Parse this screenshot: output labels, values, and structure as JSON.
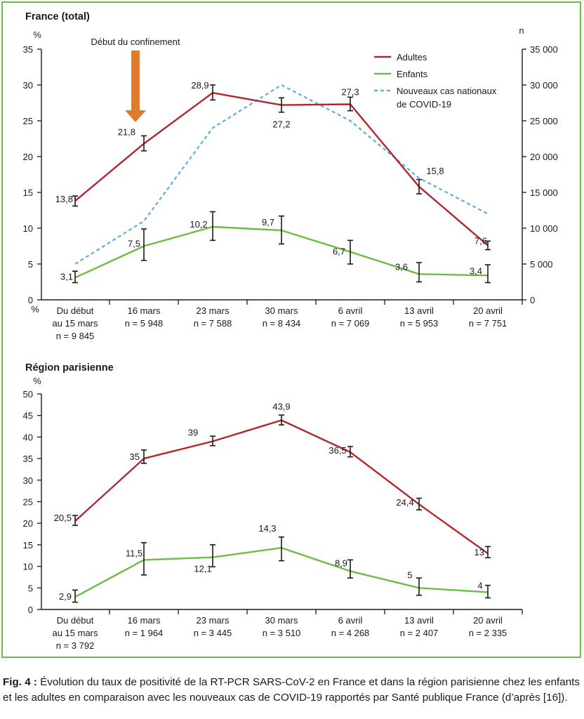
{
  "legend": {
    "adults": "Adultes",
    "children": "Enfants",
    "national_line1": "Nouveaux cas nationaux",
    "national_line2": "de COVID-19"
  },
  "colors": {
    "adults": "#b0282d",
    "children": "#6cbd45",
    "national": "#5aabe6",
    "arrow": "#e07a2c",
    "frame": "#6cbd45"
  },
  "caption": {
    "label": "Fig. 4 :",
    "text": "Évolution du taux de positivité de la RT-PCR SARS-CoV-2 en France et dans la région parisienne chez les enfants et les adultes en comparaison avec les nouveaux cas de COVID-19 rapportés par Santé publique France (d’après [16])."
  },
  "chart_data": [
    {
      "type": "line",
      "title": "France (total)",
      "ylabel": "%",
      "ylabel_bottom": "%",
      "y2label": "n",
      "ylim": [
        0,
        35
      ],
      "yticks": [
        0,
        5,
        10,
        15,
        20,
        25,
        30,
        35
      ],
      "y2lim": [
        0,
        35000
      ],
      "y2ticks": [
        "0",
        "5 000",
        "10 000",
        "15 000",
        "20 000",
        "25 000",
        "30 000",
        "35 000"
      ],
      "categories": [
        [
          "Du début",
          "au 15 mars",
          "n = 9 845"
        ],
        [
          "16 mars",
          "n = 5 948"
        ],
        [
          "23 mars",
          "n = 7 588"
        ],
        [
          "30 mars",
          "n = 8 434"
        ],
        [
          "6 avril",
          "n = 7 069"
        ],
        [
          "13 avril",
          "n = 5 953"
        ],
        [
          "20 avril",
          "n = 7 751"
        ]
      ],
      "annotation": {
        "text": "Début du confinement",
        "category_index": 1,
        "marker": "down-arrow"
      },
      "series": [
        {
          "name": "Adultes",
          "axis": "left",
          "style": "solid",
          "color": "#b0282d",
          "values": [
            13.8,
            21.8,
            28.9,
            27.2,
            27.3,
            15.8,
            7.6
          ],
          "labels": [
            "13,8",
            "21,8",
            "28,9",
            "27,2",
            "27,3",
            "15,8",
            "7,6"
          ],
          "error": [
            [
              13.1,
              14.5
            ],
            [
              20.8,
              22.9
            ],
            [
              27.9,
              30.0
            ],
            [
              26.2,
              28.2
            ],
            [
              26.4,
              28.3
            ],
            [
              14.8,
              16.8
            ],
            [
              7.0,
              8.2
            ]
          ]
        },
        {
          "name": "Enfants",
          "axis": "left",
          "style": "solid",
          "color": "#6cbd45",
          "values": [
            3.1,
            7.5,
            10.2,
            9.7,
            6.7,
            3.6,
            3.4
          ],
          "labels": [
            "3,1",
            "7,5",
            "10,2",
            "9,7",
            "6,7",
            "3,6",
            "3,4"
          ],
          "error": [
            [
              2.4,
              4.0
            ],
            [
              5.5,
              9.9
            ],
            [
              8.3,
              12.3
            ],
            [
              7.8,
              11.7
            ],
            [
              5.0,
              8.3
            ],
            [
              2.5,
              5.2
            ],
            [
              2.4,
              4.9
            ]
          ]
        },
        {
          "name": "Nouveaux cas nationaux de COVID-19",
          "axis": "right",
          "style": "dashed",
          "color": "#5aabe6",
          "values": [
            5000,
            11000,
            24000,
            30000,
            25000,
            17000,
            12000
          ]
        }
      ]
    },
    {
      "type": "line",
      "title": "Région parisienne",
      "ylabel": "%",
      "ylim": [
        0,
        50
      ],
      "yticks": [
        0,
        5,
        10,
        15,
        20,
        25,
        30,
        35,
        40,
        45,
        50
      ],
      "categories": [
        [
          "Du début",
          "au 15 mars",
          "n = 3 792"
        ],
        [
          "16 mars",
          "n = 1 964"
        ],
        [
          "23 mars",
          "n = 3 445"
        ],
        [
          "30 mars",
          "n = 3 510"
        ],
        [
          "6 avril",
          "n = 4 268"
        ],
        [
          "13 avril",
          "n = 2 407"
        ],
        [
          "20 avril",
          "n = 2 335"
        ]
      ],
      "series": [
        {
          "name": "Adultes",
          "axis": "left",
          "style": "solid",
          "color": "#b0282d",
          "values": [
            20.5,
            35,
            39,
            43.9,
            36.5,
            24.4,
            13
          ],
          "labels": [
            "20,5",
            "35",
            "39",
            "43,9",
            "36,5",
            "24,4",
            "13"
          ],
          "error": [
            [
              19.5,
              21.8
            ],
            [
              33.9,
              37.0
            ],
            [
              38.0,
              40.2
            ],
            [
              42.8,
              45.1
            ],
            [
              35.4,
              37.8
            ],
            [
              23.1,
              25.8
            ],
            [
              12.0,
              14.6
            ]
          ]
        },
        {
          "name": "Enfants",
          "axis": "left",
          "style": "solid",
          "color": "#6cbd45",
          "values": [
            2.9,
            11.5,
            12.1,
            14.3,
            8.9,
            5,
            4
          ],
          "labels": [
            "2,9",
            "11,5",
            "12,1",
            "14,3",
            "8,9",
            "5",
            "4"
          ],
          "error": [
            [
              1.7,
              4.5
            ],
            [
              8.0,
              15.5
            ],
            [
              9.9,
              15.0
            ],
            [
              11.3,
              16.8
            ],
            [
              7.3,
              11.5
            ],
            [
              3.3,
              7.3
            ],
            [
              2.7,
              5.6
            ]
          ]
        }
      ]
    }
  ]
}
